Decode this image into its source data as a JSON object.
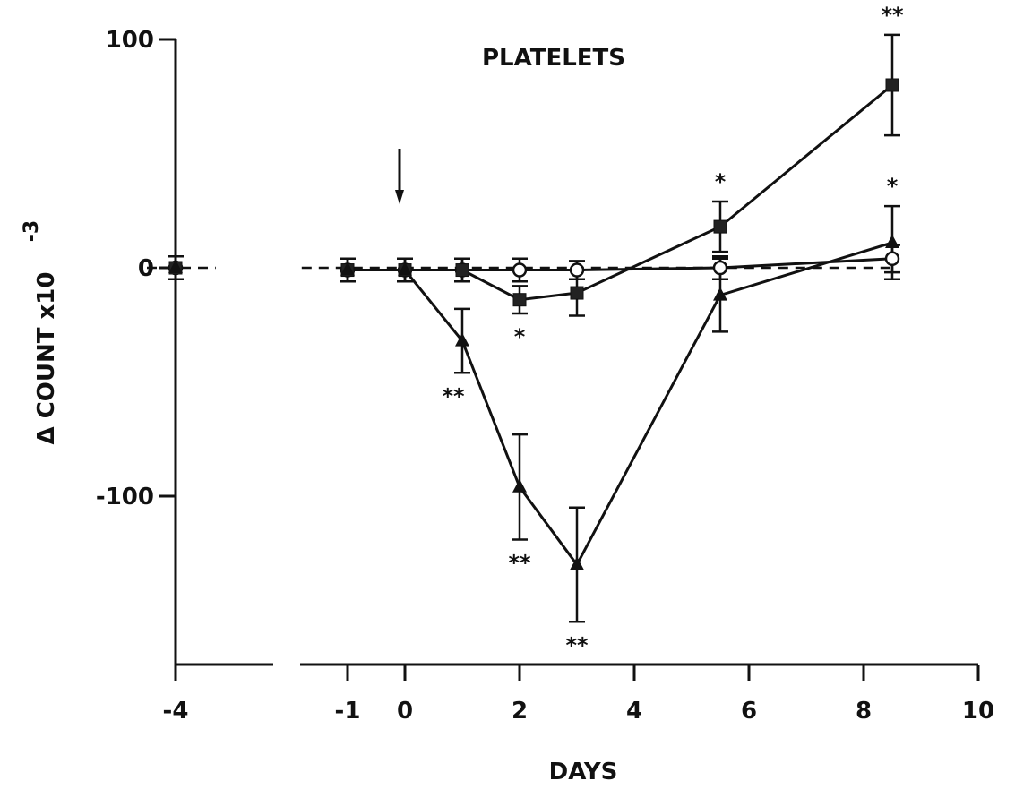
{
  "chart_data": {
    "type": "line",
    "title": "PLATELETS",
    "xlabel": "DAYS",
    "ylabel": "Δ COUNT x10",
    "ylabel_exponent": "-3",
    "xlim": [
      -4.5,
      10
    ],
    "ylim": [
      -170,
      100
    ],
    "x_ticks": [
      -4,
      -1,
      0,
      2,
      4,
      6,
      8,
      10
    ],
    "x_tick_labels": [
      "-4",
      "-1",
      "0",
      "2",
      "4",
      "6",
      "8",
      "10"
    ],
    "y_ticks": [
      100,
      0,
      -100
    ],
    "y_tick_labels": [
      "100",
      "0",
      "-100"
    ],
    "x_axis_break": true,
    "grid": false,
    "treatment_arrow_x": 0,
    "reference_line": {
      "x": [
        -4.5,
        8.5
      ],
      "y": [
        0,
        0
      ],
      "style": "dashed"
    },
    "series": [
      {
        "marker": "circle-open",
        "x": [
          -4,
          -1,
          0,
          1,
          2,
          3,
          5.5,
          8.5
        ],
        "y": [
          0,
          -1,
          -1,
          -1,
          -1,
          -1,
          0,
          4
        ],
        "error": [
          5,
          5,
          5,
          5,
          5,
          4,
          5,
          6
        ],
        "significance": [
          "",
          "",
          "",
          "",
          "",
          "",
          "",
          ""
        ]
      },
      {
        "marker": "square-filled",
        "x": [
          -4,
          -1,
          0,
          1,
          2,
          3,
          5.5,
          8.5
        ],
        "y": [
          0,
          -1,
          -1,
          -1,
          -14,
          -11,
          18,
          80
        ],
        "error": [
          5,
          5,
          5,
          5,
          6,
          10,
          11,
          22
        ],
        "significance": [
          "",
          "",
          "",
          "",
          "*",
          "",
          "*",
          "**"
        ]
      },
      {
        "marker": "triangle-filled",
        "x": [
          -4,
          -1,
          0,
          1,
          2,
          3,
          5.5,
          8.5
        ],
        "y": [
          0,
          -1,
          -1,
          -32,
          -96,
          -130,
          -12,
          11
        ],
        "error": [
          5,
          5,
          5,
          14,
          23,
          25,
          16,
          16
        ],
        "significance": [
          "",
          "",
          "",
          "**",
          "**",
          "**",
          "",
          "*"
        ]
      }
    ]
  }
}
